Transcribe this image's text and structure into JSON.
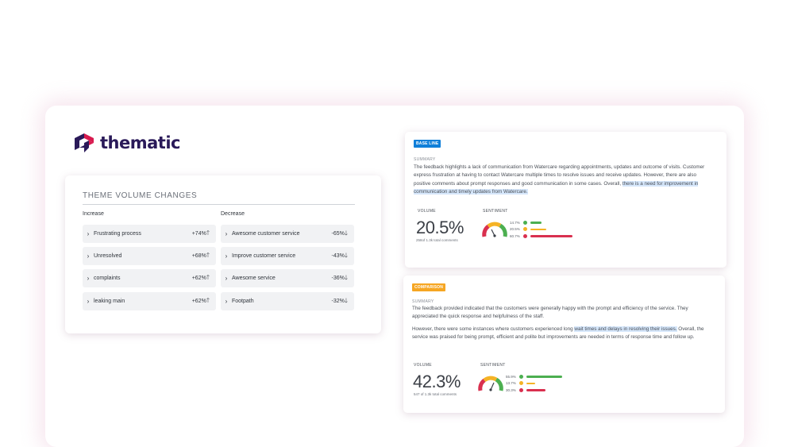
{
  "brand": {
    "name": "thematic",
    "color": "#2a1a59",
    "accent": "#d81b4f"
  },
  "theme_volume": {
    "title": "THEME VOLUME CHANGES",
    "increase_label": "Increase",
    "decrease_label": "Decrease",
    "increase": [
      {
        "label": "Frustrating process",
        "pct": "+74%"
      },
      {
        "label": "Unresolved",
        "pct": "+68%"
      },
      {
        "label": "complaints",
        "pct": "+62%"
      },
      {
        "label": "leaking main",
        "pct": "+62%"
      }
    ],
    "decrease": [
      {
        "label": "Awesome customer service",
        "pct": "-65%"
      },
      {
        "label": "Improve customer service",
        "pct": "-43%"
      },
      {
        "label": "Awesome service",
        "pct": "-36%"
      },
      {
        "label": "Footpath",
        "pct": "-32%"
      }
    ],
    "up_arrow": "🡑",
    "down_arrow": "🡓"
  },
  "baseline": {
    "tag": "BASE LINE",
    "summary_label": "SUMMARY",
    "summary_plain": "The feedback highlights a lack of communication from Watercare regarding appointments, updates and outcome of visits. Customer express frustration at having to contact Watercare multiple times to resolve issues and receive updates. However, there are also positive comments about prompt responses and good communication in some cases. Overall, ",
    "summary_highlight": "there is a need for improvement in communication and timely updates from Watercare.",
    "volume_label": "VOLUME",
    "volume_value": "20.5%",
    "volume_sub": "258of 1.3k total comments",
    "sentiment_label": "SENTIMENT",
    "sentiment": [
      {
        "pct": "14.7%",
        "color": "#4caf50",
        "fraction": 0.147
      },
      {
        "pct": "20.5%",
        "color": "#f5b325",
        "fraction": 0.205
      },
      {
        "pct": "60.7%",
        "color": "#d9304f",
        "fraction": 0.607
      }
    ]
  },
  "comparison": {
    "tag": "COMPARISON",
    "summary_label": "SUMMARY",
    "summary_p1": "The feedback provided indicated that the customers were generally happy with the prompt and efficiency of the service. They appreciated the quick response and helpfulness of the staff.",
    "summary_p2_a": "However, there were some instances where customers experienced long ",
    "summary_p2_highlight": "wait times and delays in resolving their issues.",
    "summary_p2_b": " Overall, the service was praised for being prompt, efficient and polite but improvements are needed in terms of response time and follow up.",
    "volume_label": "VOLUME",
    "volume_value": "42.3%",
    "volume_sub": "547 of 1.3k total comments",
    "sentiment_label": "SENTIMENT",
    "sentiment": [
      {
        "pct": "55.9%",
        "color": "#4caf50",
        "fraction": 0.559
      },
      {
        "pct": "13.7%",
        "color": "#f5b325",
        "fraction": 0.137
      },
      {
        "pct": "30.3%",
        "color": "#d9304f",
        "fraction": 0.303
      }
    ]
  }
}
